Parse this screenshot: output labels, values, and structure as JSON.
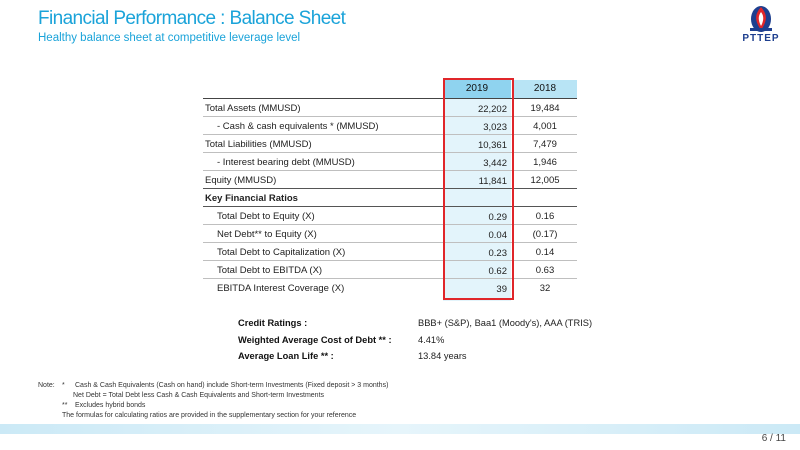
{
  "header": {
    "title": "Financial Performance : Balance Sheet",
    "subtitle": "Healthy balance sheet at competitive leverage level",
    "logo_text": "PTTEP"
  },
  "table": {
    "columns": [
      "2019",
      "2018"
    ],
    "rows": [
      {
        "label": "Total Assets (MMUSD)",
        "v2019": "22,202",
        "v2018": "19,484"
      },
      {
        "label": "- Cash & cash equivalents * (MMUSD)",
        "v2019": "3,023",
        "v2018": "4,001"
      },
      {
        "label": "Total Liabilities (MMUSD)",
        "v2019": "10,361",
        "v2018": "7,479"
      },
      {
        "label": "- Interest bearing debt (MMUSD)",
        "v2019": "3,442",
        "v2018": "1,946"
      },
      {
        "label": "Equity (MMUSD)",
        "v2019": "11,841",
        "v2018": "12,005"
      },
      {
        "label": "Key Financial Ratios",
        "v2019": "",
        "v2018": ""
      },
      {
        "label": "Total Debt to Equity (X)",
        "v2019": "0.29",
        "v2018": "0.16"
      },
      {
        "label": "Net Debt** to Equity (X)",
        "v2019": "0.04",
        "v2018": "(0.17)"
      },
      {
        "label": "Total Debt to Capitalization (X)",
        "v2019": "0.23",
        "v2018": "0.14"
      },
      {
        "label": "Total Debt to EBITDA (X)",
        "v2019": "0.62",
        "v2018": "0.63"
      },
      {
        "label": "EBITDA Interest Coverage (X)",
        "v2019": "39",
        "v2018": "32"
      }
    ]
  },
  "credit": {
    "ratings_label": "Credit Ratings :",
    "ratings_value": "BBB+ (S&P), Baa1 (Moody's), AAA (TRIS)",
    "wacd_label": "Weighted Average Cost of Debt ** :",
    "wacd_value": "4.41%",
    "loan_label": "Average Loan Life ** :",
    "loan_value": "13.84 years"
  },
  "notes": {
    "prefix": "Note:",
    "star1": "*",
    "line1": "Cash & Cash Equivalents (Cash on hand) include Short-term Investments (Fixed deposit > 3 months)",
    "line2": "Net Debt = Total Debt less Cash & Cash Equivalents and Short-term Investments",
    "star2": "**",
    "line3": "Excludes hybrid bonds",
    "line4": "The formulas for calculating ratios are provided in the supplementary section for your reference"
  },
  "page_number": "6 / 11",
  "colors": {
    "title": "#1aa3d9",
    "header_2019": "#8fd3ef",
    "header_2018": "#b8e4f5",
    "highlight_border": "#e0262a",
    "logo": "#1e3f8f"
  }
}
